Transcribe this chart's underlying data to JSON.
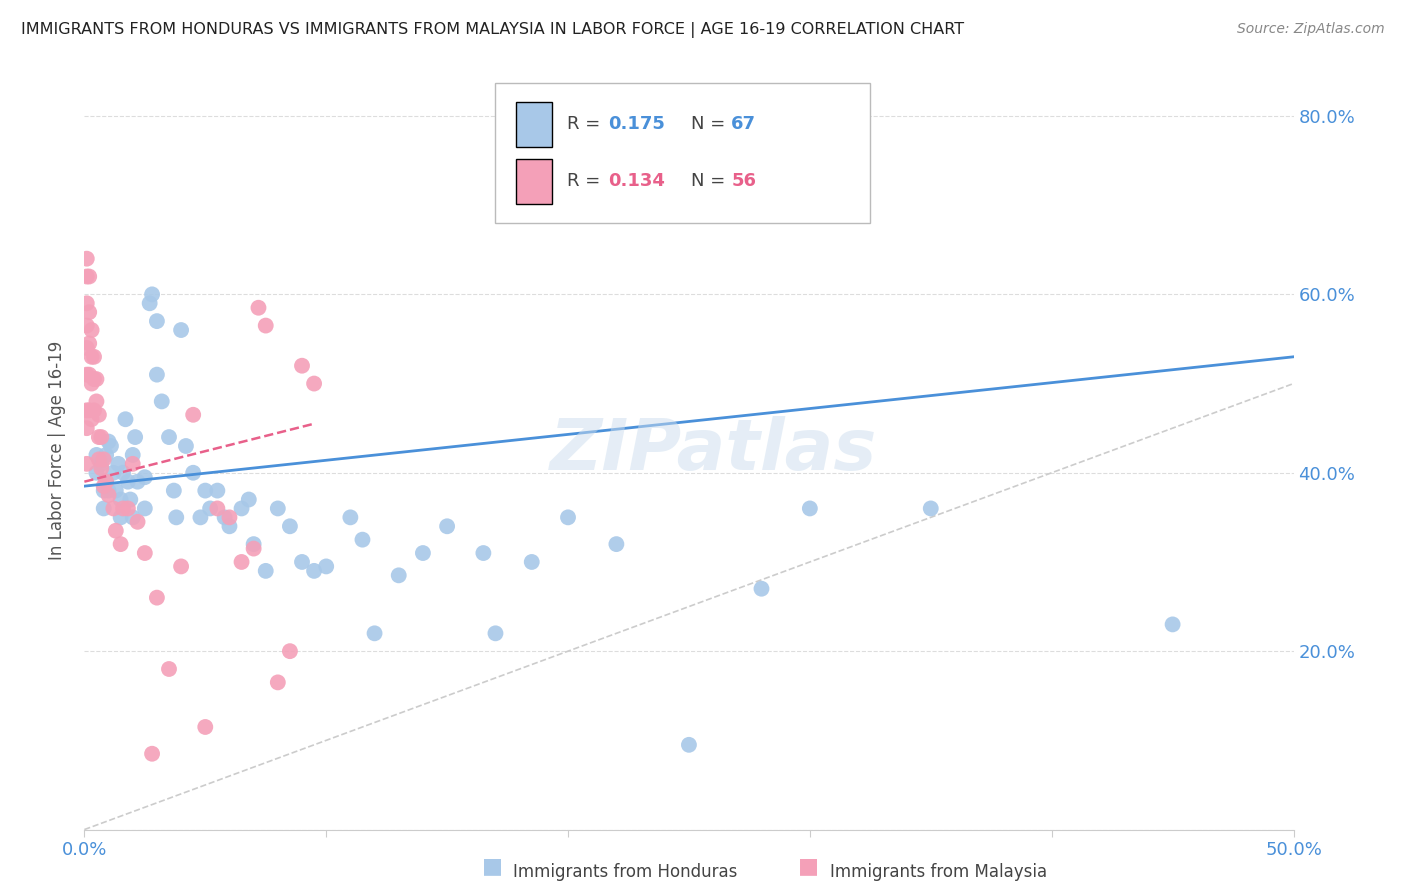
{
  "title": "IMMIGRANTS FROM HONDURAS VS IMMIGRANTS FROM MALAYSIA IN LABOR FORCE | AGE 16-19 CORRELATION CHART",
  "source": "Source: ZipAtlas.com",
  "ylabel": "In Labor Force | Age 16-19",
  "xlim": [
    0.0,
    0.5
  ],
  "ylim": [
    0.0,
    0.85
  ],
  "color_honduras": "#a8c8e8",
  "color_malaysia": "#f4a0b8",
  "color_blue_text": "#4a90d9",
  "color_pink_text": "#e8608a",
  "watermark": "ZIPatlas",
  "trendline1_color": "#4a90d9",
  "trendline2_color": "#e8608a",
  "diagonal_color": "#cccccc",
  "legend_r1": "0.175",
  "legend_n1": "67",
  "legend_r2": "0.134",
  "legend_n2": "56",
  "honduras_x": [
    0.005,
    0.005,
    0.007,
    0.008,
    0.008,
    0.009,
    0.009,
    0.01,
    0.01,
    0.011,
    0.012,
    0.013,
    0.014,
    0.015,
    0.015,
    0.016,
    0.017,
    0.018,
    0.019,
    0.02,
    0.02,
    0.021,
    0.022,
    0.025,
    0.025,
    0.027,
    0.028,
    0.03,
    0.03,
    0.032,
    0.035,
    0.037,
    0.038,
    0.04,
    0.042,
    0.045,
    0.048,
    0.05,
    0.052,
    0.055,
    0.058,
    0.06,
    0.065,
    0.068,
    0.07,
    0.075,
    0.08,
    0.085,
    0.09,
    0.095,
    0.1,
    0.11,
    0.115,
    0.12,
    0.13,
    0.14,
    0.15,
    0.165,
    0.17,
    0.185,
    0.2,
    0.22,
    0.25,
    0.28,
    0.3,
    0.35,
    0.45
  ],
  "honduras_y": [
    0.4,
    0.42,
    0.41,
    0.38,
    0.36,
    0.42,
    0.39,
    0.435,
    0.38,
    0.43,
    0.4,
    0.38,
    0.41,
    0.37,
    0.35,
    0.4,
    0.46,
    0.39,
    0.37,
    0.35,
    0.42,
    0.44,
    0.39,
    0.36,
    0.395,
    0.59,
    0.6,
    0.57,
    0.51,
    0.48,
    0.44,
    0.38,
    0.35,
    0.56,
    0.43,
    0.4,
    0.35,
    0.38,
    0.36,
    0.38,
    0.35,
    0.34,
    0.36,
    0.37,
    0.32,
    0.29,
    0.36,
    0.34,
    0.3,
    0.29,
    0.295,
    0.35,
    0.325,
    0.22,
    0.285,
    0.31,
    0.34,
    0.31,
    0.22,
    0.3,
    0.35,
    0.32,
    0.095,
    0.27,
    0.36,
    0.36,
    0.23
  ],
  "malaysia_x": [
    0.001,
    0.001,
    0.001,
    0.001,
    0.001,
    0.001,
    0.001,
    0.001,
    0.001,
    0.002,
    0.002,
    0.002,
    0.002,
    0.002,
    0.003,
    0.003,
    0.003,
    0.003,
    0.004,
    0.004,
    0.004,
    0.005,
    0.005,
    0.006,
    0.006,
    0.006,
    0.007,
    0.007,
    0.008,
    0.008,
    0.009,
    0.01,
    0.012,
    0.013,
    0.015,
    0.016,
    0.018,
    0.02,
    0.022,
    0.025,
    0.028,
    0.03,
    0.035,
    0.04,
    0.045,
    0.05,
    0.055,
    0.06,
    0.065,
    0.07,
    0.072,
    0.075,
    0.08,
    0.085,
    0.09,
    0.095
  ],
  "malaysia_y": [
    0.64,
    0.62,
    0.59,
    0.565,
    0.54,
    0.51,
    0.47,
    0.45,
    0.41,
    0.62,
    0.58,
    0.545,
    0.51,
    0.47,
    0.56,
    0.53,
    0.5,
    0.46,
    0.53,
    0.505,
    0.47,
    0.505,
    0.48,
    0.465,
    0.44,
    0.415,
    0.44,
    0.405,
    0.415,
    0.385,
    0.39,
    0.375,
    0.36,
    0.335,
    0.32,
    0.36,
    0.36,
    0.41,
    0.345,
    0.31,
    0.085,
    0.26,
    0.18,
    0.295,
    0.465,
    0.115,
    0.36,
    0.35,
    0.3,
    0.315,
    0.585,
    0.565,
    0.165,
    0.2,
    0.52,
    0.5
  ]
}
